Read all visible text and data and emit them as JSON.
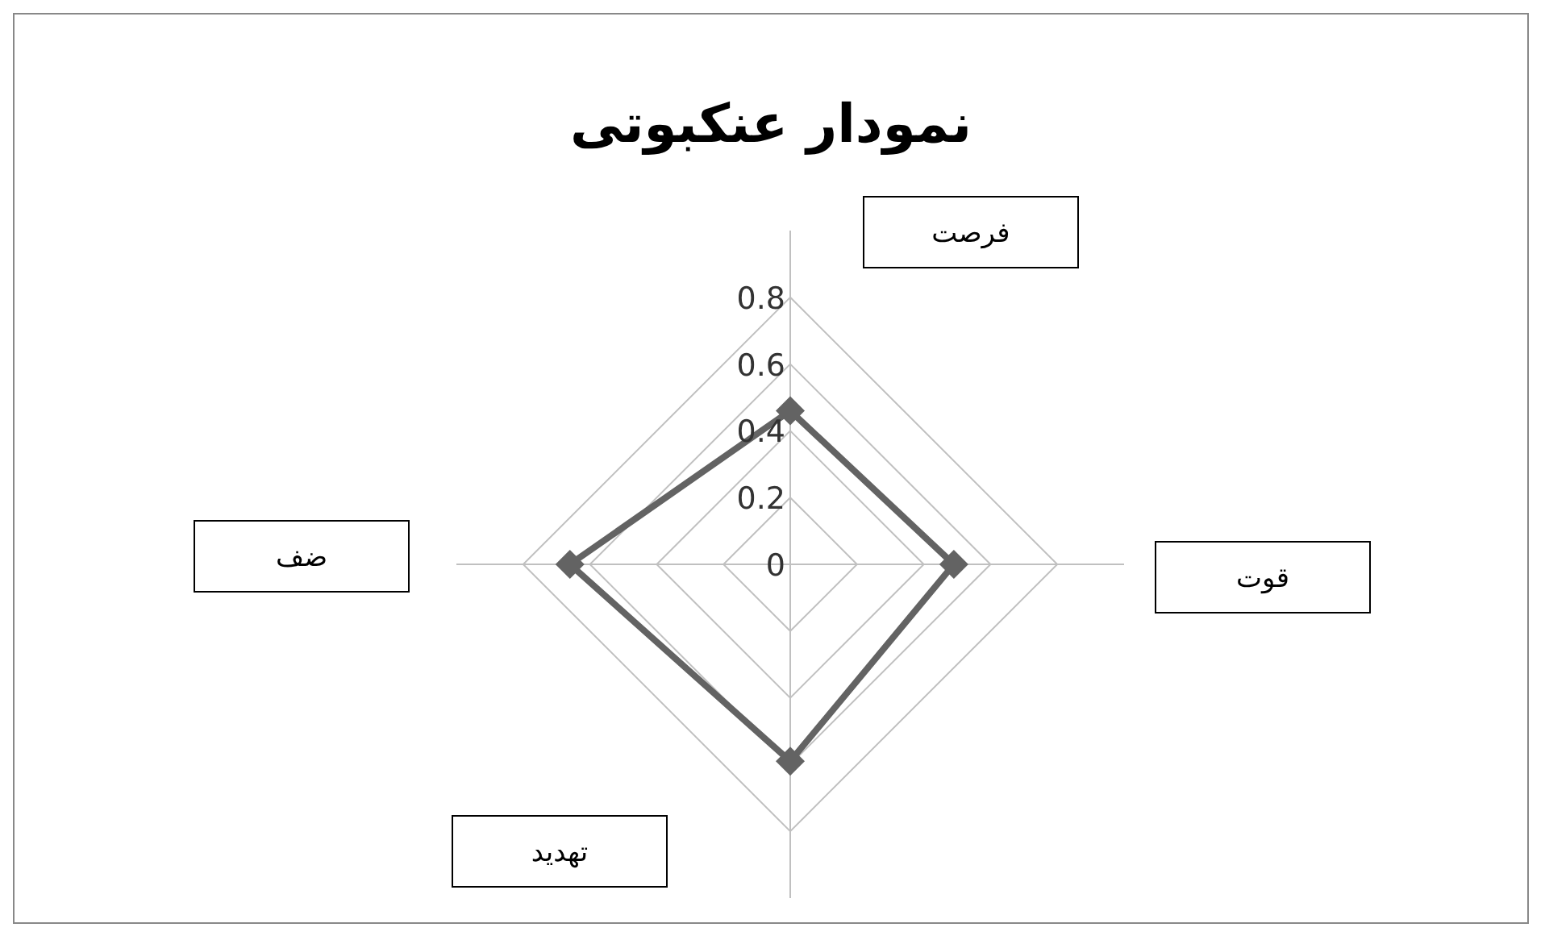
{
  "chart_data": {
    "type": "radar",
    "title": "نمودار عنکبوتی",
    "categories": [
      "فرصت",
      "قوت",
      "تهدید",
      "ضف"
    ],
    "series": [
      {
        "color": "#636363",
        "values": [
          0.46,
          0.49,
          0.59,
          0.66
        ]
      }
    ],
    "ylim": [
      0,
      0.8
    ],
    "yticks": [
      0,
      0.2,
      0.4,
      0.6,
      0.8
    ],
    "grid": true,
    "marker": "diamond",
    "legend": false
  }
}
